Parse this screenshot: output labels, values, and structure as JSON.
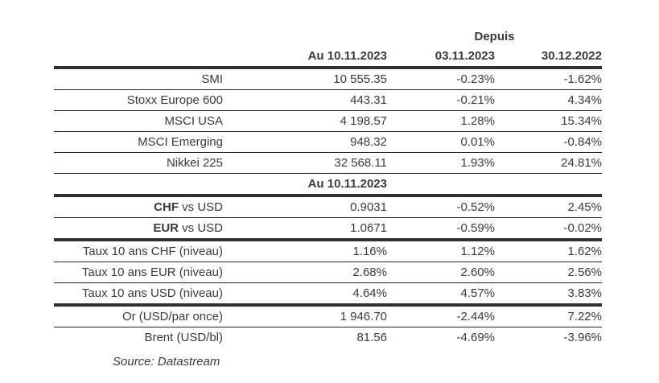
{
  "colors": {
    "background": "#ffffff",
    "text": "#3a3a3a",
    "rule_thick": "#32302a",
    "rule_thin": "#232323"
  },
  "chart_data": {
    "type": "table",
    "title": "",
    "columns": {
      "group_header": "Depuis",
      "col1": "Au 10.11.2023",
      "col2": "03.11.2023",
      "col3": "30.12.2022"
    },
    "mid_header": "Au 10.11.2023",
    "rows": [
      {
        "label": "SMI",
        "v1": "10 555.35",
        "v2": "-0.23%",
        "v3": "-1.62%"
      },
      {
        "label": "Stoxx Europe 600",
        "v1": "443.31",
        "v2": "-0.21%",
        "v3": "4.34%"
      },
      {
        "label": "MSCI USA",
        "v1": "4 198.57",
        "v2": "1.28%",
        "v3": "15.34%"
      },
      {
        "label": "MSCI Emerging",
        "v1": "948.32",
        "v2": "0.01%",
        "v3": "-0.84%"
      },
      {
        "label": "Nikkei 225",
        "v1": "32 568.11",
        "v2": "1.93%",
        "v3": "24.81%"
      },
      {
        "label_bold": "CHF",
        "label": " vs USD",
        "v1": "0.9031",
        "v2": "-0.52%",
        "v3": "2.45%"
      },
      {
        "label_bold": "EUR",
        "label": " vs USD",
        "v1": "1.0671",
        "v2": "-0.59%",
        "v3": "-0.02%"
      },
      {
        "label": "Taux 10 ans CHF (niveau)",
        "v1": "1.16%",
        "v2": "1.12%",
        "v3": "1.62%"
      },
      {
        "label": "Taux 10 ans EUR (niveau)",
        "v1": "2.68%",
        "v2": "2.60%",
        "v3": "2.56%"
      },
      {
        "label": "Taux 10 ans USD (niveau)",
        "v1": "4.64%",
        "v2": "4.57%",
        "v3": "3.83%"
      },
      {
        "label": "Or (USD/par once)",
        "v1": "1 946.70",
        "v2": "-2.44%",
        "v3": "7.22%"
      },
      {
        "label": "Brent (USD/bl)",
        "v1": "81.56",
        "v2": "-4.69%",
        "v3": "-3.96%"
      }
    ],
    "source": "Source: Datastream"
  }
}
